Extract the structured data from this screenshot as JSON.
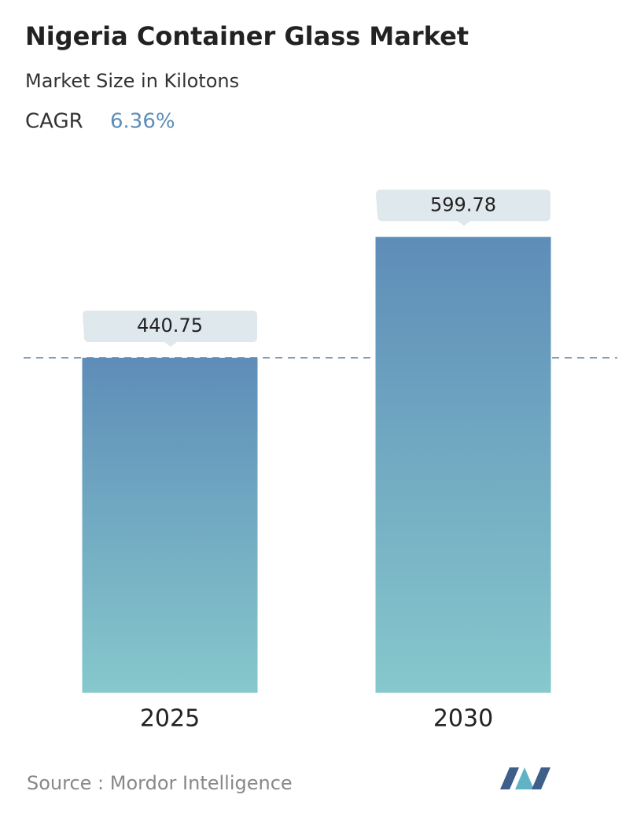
{
  "chart_data": {
    "type": "bar",
    "title": "Nigeria Container Glass Market",
    "subtitle": "Market Size in Kilotons",
    "cagr_label": "CAGR",
    "cagr": "6.36%",
    "categories": [
      "2025",
      "2030"
    ],
    "values": [
      440.75,
      599.78
    ],
    "colors": [
      "#5e8db8",
      "#86c8cc"
    ],
    "source": "Source :  Mordor Intelligence"
  }
}
